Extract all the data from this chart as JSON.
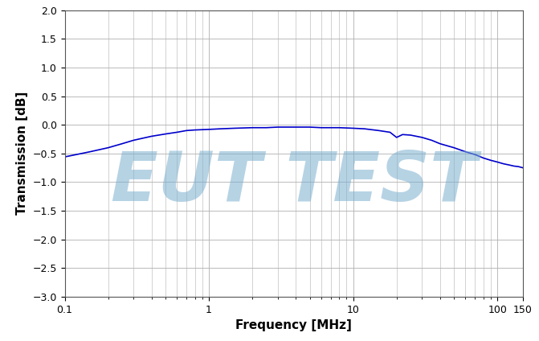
{
  "title": "",
  "xlabel": "Frequency [MHz]",
  "ylabel": "Transmission [dB]",
  "xlim": [
    0.1,
    150
  ],
  "ylim": [
    -3,
    2
  ],
  "yticks": [
    -3,
    -2.5,
    -2,
    -1.5,
    -1,
    -0.5,
    0,
    0.5,
    1,
    1.5,
    2
  ],
  "line_color": "#0000cc",
  "line_width": 1.2,
  "grid_color": "#b0b0b0",
  "bg_color": "#ffffff",
  "watermark_text": "EUT TEST",
  "watermark_color": "#7aafcf",
  "watermark_alpha": 0.55,
  "curve_points": [
    [
      0.1,
      -0.56
    ],
    [
      0.12,
      -0.52
    ],
    [
      0.15,
      -0.47
    ],
    [
      0.2,
      -0.4
    ],
    [
      0.25,
      -0.33
    ],
    [
      0.3,
      -0.27
    ],
    [
      0.4,
      -0.2
    ],
    [
      0.5,
      -0.16
    ],
    [
      0.6,
      -0.13
    ],
    [
      0.7,
      -0.1
    ],
    [
      0.8,
      -0.09
    ],
    [
      1.0,
      -0.08
    ],
    [
      1.2,
      -0.07
    ],
    [
      1.5,
      -0.06
    ],
    [
      2.0,
      -0.05
    ],
    [
      2.5,
      -0.05
    ],
    [
      3.0,
      -0.04
    ],
    [
      4.0,
      -0.04
    ],
    [
      5.0,
      -0.04
    ],
    [
      6.0,
      -0.05
    ],
    [
      7.0,
      -0.05
    ],
    [
      8.0,
      -0.05
    ],
    [
      10.0,
      -0.06
    ],
    [
      12.0,
      -0.07
    ],
    [
      15.0,
      -0.1
    ],
    [
      18.0,
      -0.13
    ],
    [
      20.0,
      -0.22
    ],
    [
      22.0,
      -0.17
    ],
    [
      25.0,
      -0.18
    ],
    [
      30.0,
      -0.22
    ],
    [
      35.0,
      -0.27
    ],
    [
      40.0,
      -0.33
    ],
    [
      50.0,
      -0.4
    ],
    [
      60.0,
      -0.47
    ],
    [
      70.0,
      -0.52
    ],
    [
      80.0,
      -0.58
    ],
    [
      90.0,
      -0.62
    ],
    [
      100.0,
      -0.65
    ],
    [
      110.0,
      -0.68
    ],
    [
      120.0,
      -0.7
    ],
    [
      130.0,
      -0.72
    ],
    [
      140.0,
      -0.73
    ],
    [
      150.0,
      -0.75
    ]
  ],
  "figsize": [
    6.71,
    4.24
  ],
  "dpi": 100
}
